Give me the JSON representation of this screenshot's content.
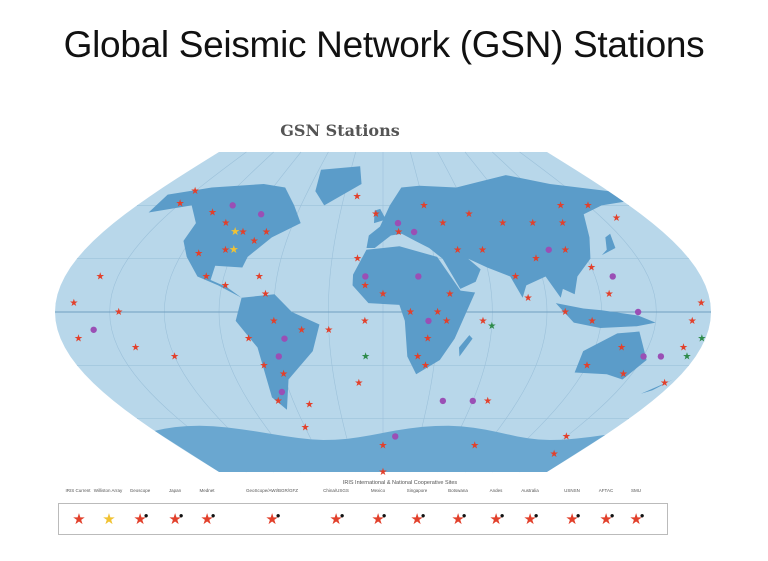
{
  "slide": {
    "title": "Global Seismic Network (GSN) Stations"
  },
  "map": {
    "title": "GSN Stations",
    "colors": {
      "ocean": "#b8d7ea",
      "land": "#5b9cc9",
      "antarctica": "#6aa7d0",
      "station": "#e2402b",
      "affiliate": "#9a4fb5",
      "williston": "#f1c232",
      "other": "#2e8b4a"
    }
  },
  "legend": {
    "heading": "IRIS International & National Cooperative Sites",
    "items": [
      {
        "label": "IRIS Current",
        "color": "#e2402b",
        "dot": false
      },
      {
        "label": "Williston Array",
        "color": "#f1c232",
        "dot": false
      },
      {
        "label": "Geoscope",
        "color": "#e2402b",
        "dot": true
      },
      {
        "label": "Japan",
        "color": "#e2402b",
        "dot": true
      },
      {
        "label": "Mednet",
        "color": "#e2402b",
        "dot": true
      },
      {
        "label": "GeoScope/AWI/BGR/GFZ",
        "color": "#e2402b",
        "dot": true
      },
      {
        "label": "China/USGS",
        "color": "#e2402b",
        "dot": true
      },
      {
        "label": "Mexico",
        "color": "#e2402b",
        "dot": true
      },
      {
        "label": "Singapore",
        "color": "#e2402b",
        "dot": true
      },
      {
        "label": "Botswana",
        "color": "#e2402b",
        "dot": true
      },
      {
        "label": "Andes",
        "color": "#e2402b",
        "dot": true
      },
      {
        "label": "Australia",
        "color": "#e2402b",
        "dot": true
      },
      {
        "label": "USNSN",
        "color": "#e2402b",
        "dot": true
      },
      {
        "label": "AFTAC",
        "color": "#e2402b",
        "dot": true
      },
      {
        "label": "SMU",
        "color": "#e2402b",
        "dot": true
      }
    ]
  }
}
